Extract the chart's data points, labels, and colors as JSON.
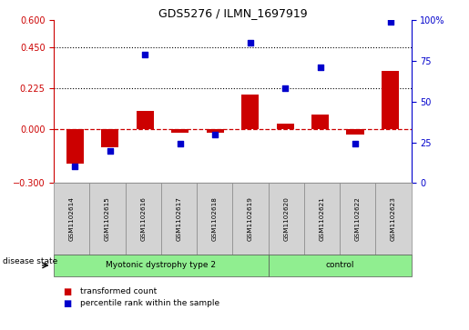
{
  "title": "GDS5276 / ILMN_1697919",
  "samples": [
    "GSM1102614",
    "GSM1102615",
    "GSM1102616",
    "GSM1102617",
    "GSM1102618",
    "GSM1102619",
    "GSM1102620",
    "GSM1102621",
    "GSM1102622",
    "GSM1102623"
  ],
  "red_values": [
    -0.19,
    -0.1,
    0.1,
    -0.02,
    -0.02,
    0.19,
    0.03,
    0.08,
    -0.03,
    0.32
  ],
  "blue_values": [
    10,
    20,
    79,
    24,
    30,
    86,
    58,
    71,
    24,
    99
  ],
  "ylim_left": [
    -0.3,
    0.6
  ],
  "ylim_right": [
    0,
    100
  ],
  "yticks_left": [
    -0.3,
    0,
    0.225,
    0.45,
    0.6
  ],
  "yticks_right": [
    0,
    25,
    50,
    75,
    100
  ],
  "hlines": [
    0.225,
    0.45
  ],
  "group1_count": 6,
  "group2_count": 4,
  "group1_label": "Myotonic dystrophy type 2",
  "group2_label": "control",
  "group_color": "#90EE90",
  "legend_red_label": "transformed count",
  "legend_blue_label": "percentile rank within the sample",
  "bar_color": "#CC0000",
  "point_color": "#0000CC",
  "zero_line_color": "#CC0000",
  "sample_box_color": "#D3D3D3",
  "disease_state_text": "disease state"
}
